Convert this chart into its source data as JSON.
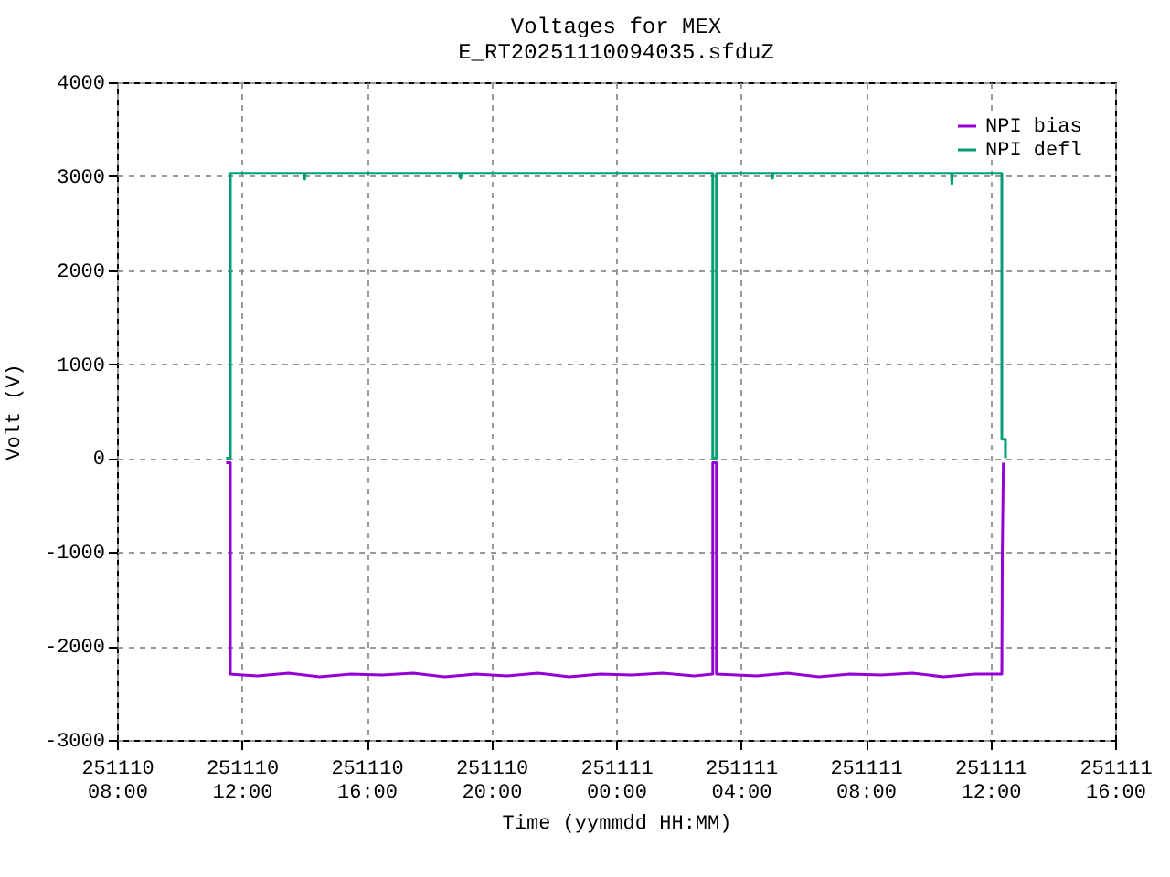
{
  "chart_data": {
    "type": "line",
    "title": "Voltages for MEX",
    "subtitle": "E_RT20251110094035.sfduZ",
    "xlabel": "Time (yymmdd HH:MM)",
    "ylabel": "Volt (V)",
    "xlim": [
      "2025-11-10T08:00",
      "2025-11-11T16:00"
    ],
    "xticks": [
      {
        "value": "2025-11-10T08:00",
        "label": "251110\n08:00"
      },
      {
        "value": "2025-11-10T12:00",
        "label": "251110\n12:00"
      },
      {
        "value": "2025-11-10T16:00",
        "label": "251110\n16:00"
      },
      {
        "value": "2025-11-10T20:00",
        "label": "251110\n20:00"
      },
      {
        "value": "2025-11-11T00:00",
        "label": "251111\n00:00"
      },
      {
        "value": "2025-11-11T04:00",
        "label": "251111\n04:00"
      },
      {
        "value": "2025-11-11T08:00",
        "label": "251111\n08:00"
      },
      {
        "value": "2025-11-11T12:00",
        "label": "251111\n12:00"
      },
      {
        "value": "2025-11-11T16:00",
        "label": "251111\n16:00"
      }
    ],
    "ylim": [
      -3000,
      4000
    ],
    "yticks": [
      -3000,
      -2000,
      -1000,
      0,
      1000,
      2000,
      3000,
      4000
    ],
    "grid": true,
    "legend": "top right",
    "line_style": "solid",
    "marker": "none",
    "series": [
      {
        "name": "NPI bias",
        "color": "#9400d3",
        "x": [
          "2025-11-10T11:30",
          "2025-11-10T11:38",
          "2025-11-10T11:38",
          "2025-11-10T12:30",
          "2025-11-10T13:30",
          "2025-11-10T14:30",
          "2025-11-10T15:30",
          "2025-11-10T16:30",
          "2025-11-10T17:30",
          "2025-11-10T18:30",
          "2025-11-10T19:30",
          "2025-11-10T20:30",
          "2025-11-10T21:30",
          "2025-11-10T22:30",
          "2025-11-10T23:30",
          "2025-11-11T00:30",
          "2025-11-11T01:30",
          "2025-11-11T02:30",
          "2025-11-11T03:06",
          "2025-11-11T03:06",
          "2025-11-11T03:13",
          "2025-11-11T03:13",
          "2025-11-11T04:30",
          "2025-11-11T05:30",
          "2025-11-11T06:30",
          "2025-11-11T07:30",
          "2025-11-11T08:30",
          "2025-11-11T09:30",
          "2025-11-11T10:30",
          "2025-11-11T11:30",
          "2025-11-11T12:22",
          "2025-11-11T12:23",
          "2025-11-11T12:25"
        ],
        "values": [
          -50,
          -50,
          -2300,
          -2320,
          -2290,
          -2330,
          -2300,
          -2310,
          -2290,
          -2330,
          -2300,
          -2320,
          -2290,
          -2330,
          -2300,
          -2310,
          -2290,
          -2320,
          -2300,
          -50,
          -50,
          -2300,
          -2320,
          -2290,
          -2330,
          -2300,
          -2310,
          -2290,
          -2330,
          -2300,
          -2300,
          -1000,
          -50
        ]
      },
      {
        "name": "NPI defl",
        "color": "#009e73",
        "x": [
          "2025-11-10T11:30",
          "2025-11-10T11:38",
          "2025-11-10T11:38",
          "2025-11-10T12:30",
          "2025-11-10T14:00",
          "2025-11-10T14:01",
          "2025-11-10T14:02",
          "2025-11-10T16:30",
          "2025-11-10T19:00",
          "2025-11-10T19:01",
          "2025-11-10T19:02",
          "2025-11-10T22:00",
          "2025-11-11T01:00",
          "2025-11-11T03:06",
          "2025-11-11T03:06",
          "2025-11-11T03:13",
          "2025-11-11T03:13",
          "2025-11-11T05:00",
          "2025-11-11T05:01",
          "2025-11-11T05:02",
          "2025-11-11T08:00",
          "2025-11-11T10:45",
          "2025-11-11T10:46",
          "2025-11-11T10:47",
          "2025-11-11T12:22",
          "2025-11-11T12:22",
          "2025-11-11T12:29",
          "2025-11-11T12:29"
        ],
        "values": [
          0,
          0,
          3030,
          3030,
          3030,
          2970,
          3030,
          3030,
          3030,
          2980,
          3030,
          3030,
          3030,
          3030,
          0,
          0,
          3030,
          3030,
          2980,
          3030,
          3030,
          3030,
          2920,
          3030,
          3030,
          200,
          200,
          0
        ]
      }
    ]
  }
}
